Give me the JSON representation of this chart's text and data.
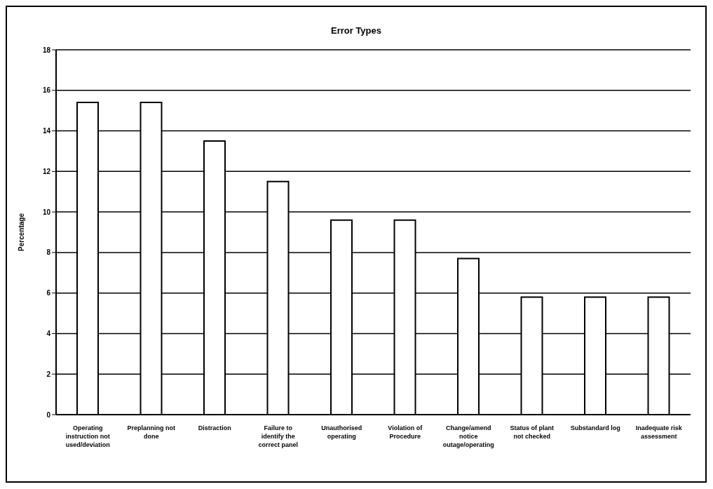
{
  "chart_data": {
    "type": "bar",
    "title": "Error Types",
    "ylabel": "Percentage",
    "categories": [
      "Operating instruction not used/deviation",
      "Preplanning not done",
      "Distraction",
      "Failure to identify the correct panel",
      "Unauthorised operating",
      "Violation of Procedure",
      "Change/amend notice outage/operating",
      "Status of plant not checked",
      "Substandard log",
      "Inadequate risk assessment"
    ],
    "values": [
      15.4,
      15.4,
      13.5,
      11.5,
      9.6,
      9.6,
      7.7,
      5.8,
      5.8,
      5.8
    ],
    "color": "#ffffff",
    "ylim": [
      0,
      18
    ],
    "yticks": [
      0,
      2,
      4,
      6,
      8,
      10,
      12,
      14,
      16,
      18
    ],
    "grid": "y"
  }
}
